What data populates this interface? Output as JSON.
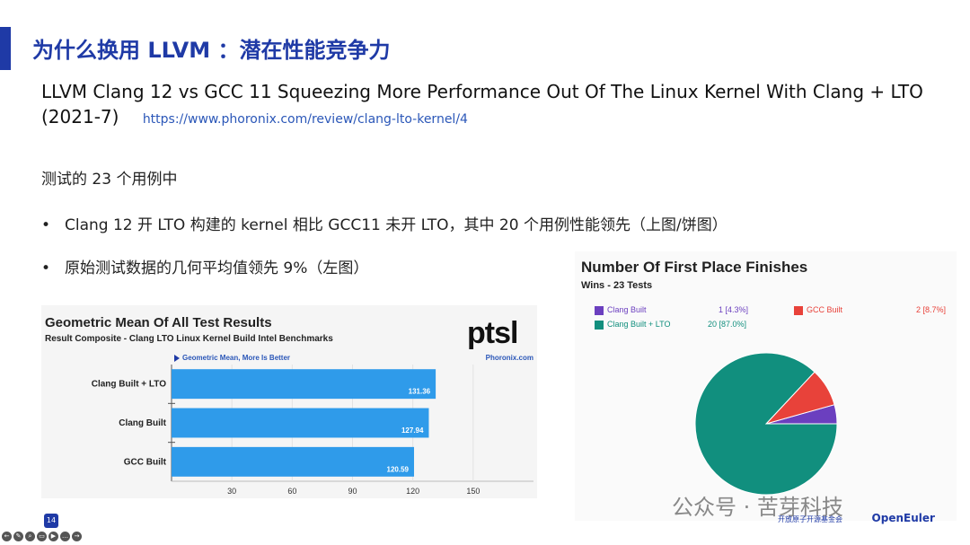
{
  "slide": {
    "title": "为什么换用 LLVM ：潜在性能竞争力",
    "subtitle": "LLVM Clang 12 vs GCC 11 Squeezing More Performance Out Of The Linux Kernel With Clang + LTO (2021-7)",
    "link": "https://www.phoronix.com/review/clang-lto-kernel/4",
    "intro": "测试的 23 个用例中",
    "bullets": [
      "Clang 12 开 LTO 构建的 kernel 相比 GCC11 未开 LTO，其中 20 个用例性能领先（上图/饼图）",
      "原始测试数据的几何平均值领先 9%（左图）"
    ],
    "bullet_mark": "•",
    "page_number": "14"
  },
  "bar_chart_text": {
    "logo": "ptsl",
    "meta": "Geometric Mean, More Is Better",
    "site": "Phoronix.com"
  },
  "chart_data": [
    {
      "type": "bar",
      "orientation": "horizontal",
      "title": "Geometric Mean Of All Test Results",
      "subtitle": "Result Composite - Clang LTO Linux Kernel Build Intel Benchmarks",
      "categories": [
        "Clang Built + LTO",
        "Clang Built",
        "GCC Built"
      ],
      "values": [
        131.36,
        127.94,
        120.59
      ],
      "value_labels": [
        "131.36",
        "127.94",
        "120.59"
      ],
      "xlim": [
        0,
        180
      ],
      "xticks": [
        30,
        60,
        90,
        120,
        150
      ],
      "bar_color": "#2f9bea"
    },
    {
      "type": "pie",
      "title": "Number Of First Place Finishes",
      "subtitle": "Wins - 23 Tests",
      "legend_position": "top",
      "slices": [
        {
          "name": "Clang Built",
          "value": 1,
          "label": "1 [4.3%]",
          "color": "#6b3fbf"
        },
        {
          "name": "GCC Built",
          "value": 2,
          "label": "2 [8.7%]",
          "color": "#e8423a"
        },
        {
          "name": "Clang Built + LTO",
          "value": 20,
          "label": "20 [87.0%]",
          "color": "#118f7e"
        }
      ]
    }
  ],
  "footer": {
    "watermark": "公众号 · 苦芽科技",
    "foundation": "开放原子开源基金会",
    "openeuler": "OpenEuler",
    "tools": [
      "←",
      "✎",
      "⌕",
      "▭",
      "▶",
      "…",
      "→"
    ]
  }
}
